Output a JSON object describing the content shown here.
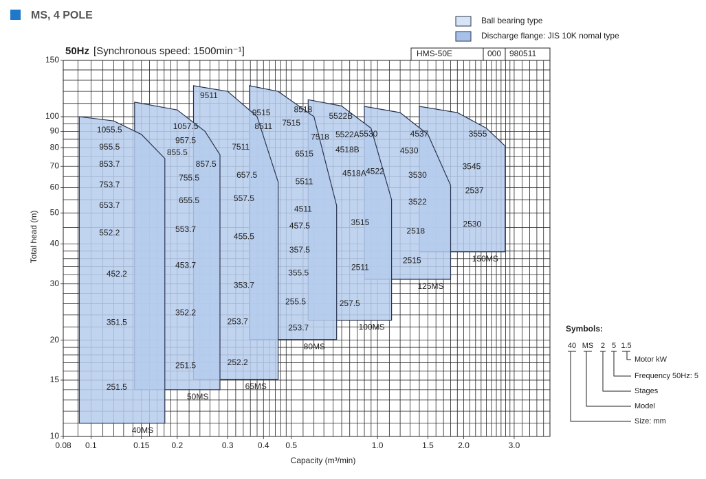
{
  "header": "MS, 4 POLE",
  "legend": [
    {
      "label": "Ball bearing type",
      "color": "#d6e4f5"
    },
    {
      "label": "Discharge flange: JIS 10K nomal type",
      "color": "#a6c0e8"
    }
  ],
  "doc_box": [
    "HMS-50E",
    "000",
    "980511"
  ],
  "symbols": {
    "title": "Symbols:",
    "codes": [
      "40",
      "MS",
      "2",
      "5",
      "1.5"
    ],
    "meanings": [
      "Size: mm",
      "Model",
      "Stages",
      "Frequency 50Hz: 5",
      "Motor kW"
    ]
  },
  "chart_data": {
    "type": "region",
    "title_bold": "50Hz",
    "title": "[Synchronous speed: 1500min⁻¹]",
    "x_label": "Capacity  (m³/min)",
    "y_label": "Total head  (m)",
    "log_x": true,
    "log_y": true,
    "xlim": [
      0.08,
      4.0
    ],
    "ylim": [
      10,
      150
    ],
    "color": "#b5cbec",
    "edge_color": "#2a3550",
    "xticks": [
      0.08,
      0.1,
      0.15,
      0.2,
      0.3,
      0.4,
      0.5,
      {
        "value": 1,
        "label": "1.0"
      },
      1.5,
      {
        "value": 2,
        "label": "2.0"
      },
      {
        "value": 3,
        "label": "3.0"
      }
    ],
    "yticks": [
      10,
      15,
      20,
      30,
      40,
      50,
      60,
      70,
      80,
      90,
      100,
      150
    ],
    "xgrid": [
      0.09,
      0.11,
      0.12,
      0.13,
      0.14,
      0.16,
      0.17,
      0.18,
      0.19,
      0.22,
      0.24,
      0.26,
      0.28,
      0.32,
      0.34,
      0.36,
      0.38,
      0.42,
      0.44,
      0.46,
      0.48,
      0.55,
      0.6,
      0.65,
      0.7,
      0.75,
      0.8,
      0.85,
      0.9,
      0.95,
      1.1,
      1.2,
      1.3,
      1.4,
      1.6,
      1.7,
      1.8,
      1.9,
      2.1,
      2.2,
      2.3,
      2.4,
      2.5,
      2.6,
      2.7,
      2.8,
      2.9,
      3.2,
      3.4,
      3.6,
      3.8,
      4.0
    ],
    "ygrid": [
      11,
      12,
      13,
      14,
      16,
      17,
      18,
      19,
      22,
      24,
      26,
      28,
      32,
      34,
      36,
      38,
      45,
      55,
      65,
      75,
      85,
      95,
      110,
      120,
      130,
      140
    ],
    "families": [
      {
        "name": "150MS",
        "x": [
          1.4,
          1.9,
          2.4,
          2.79,
          2.79,
          1.4
        ],
        "y": [
          107.7,
          103,
          92,
          81,
          37.8,
          37.8
        ],
        "models": [
          {
            "name": "3555",
            "x": 2.24,
            "y": 88.1
          },
          {
            "name": "3545",
            "x": 2.13,
            "y": 69.7
          },
          {
            "name": "2537",
            "x": 2.18,
            "y": 58.5
          },
          {
            "name": "2530",
            "x": 2.14,
            "y": 46.0
          }
        ]
      },
      {
        "name": "125MS",
        "x": [
          0.9,
          1.2,
          1.5,
          1.8,
          1.8,
          0.9
        ],
        "y": [
          107.7,
          103,
          88,
          61,
          31,
          31
        ],
        "models": [
          {
            "name": "4537",
            "x": 1.4,
            "y": 88.1
          },
          {
            "name": "4530",
            "x": 1.29,
            "y": 78.0
          },
          {
            "name": "3530",
            "x": 1.38,
            "y": 65.5
          },
          {
            "name": "3522",
            "x": 1.38,
            "y": 54
          },
          {
            "name": "2518",
            "x": 1.36,
            "y": 43.7
          },
          {
            "name": "2515",
            "x": 1.32,
            "y": 35.4
          }
        ]
      },
      {
        "name": "100MS",
        "x": [
          0.573,
          0.75,
          0.95,
          1.12,
          1.12,
          0.573
        ],
        "y": [
          113,
          108,
          92,
          55,
          23.1,
          23.1
        ],
        "models": [
          {
            "name": "8518",
            "x": 0.55,
            "y": 105
          },
          {
            "name": "5522B",
            "x": 0.745,
            "y": 100
          },
          {
            "name": "7518",
            "x": 0.63,
            "y": 86.2
          },
          {
            "name": "5522A",
            "x": 0.785,
            "y": 87.5
          },
          {
            "name": "4518B",
            "x": 0.785,
            "y": 78.6
          },
          {
            "name": "5530",
            "x": 0.93,
            "y": 88.1
          },
          {
            "name": "4522",
            "x": 0.98,
            "y": 67.3
          },
          {
            "name": "4518A",
            "x": 0.83,
            "y": 66.3
          },
          {
            "name": "3515",
            "x": 0.87,
            "y": 46.5
          },
          {
            "name": "2511",
            "x": 0.87,
            "y": 33.7
          },
          {
            "name": "257.5",
            "x": 0.8,
            "y": 26.0
          }
        ]
      },
      {
        "name": "80MS",
        "x": [
          0.357,
          0.45,
          0.6,
          0.72,
          0.72,
          0.357
        ],
        "y": [
          125,
          120,
          100,
          52.7,
          20.1,
          20.1
        ],
        "models": [
          {
            "name": "9515",
            "x": 0.393,
            "y": 102.5
          },
          {
            "name": "8511",
            "x": 0.4,
            "y": 92.9
          },
          {
            "name": "7515",
            "x": 0.5,
            "y": 95.2
          },
          {
            "name": "6515",
            "x": 0.555,
            "y": 76.2
          },
          {
            "name": "5511",
            "x": 0.555,
            "y": 62.5
          },
          {
            "name": "4511",
            "x": 0.55,
            "y": 51.3
          },
          {
            "name": "457.5",
            "x": 0.535,
            "y": 45.4
          },
          {
            "name": "357.5",
            "x": 0.535,
            "y": 38.2
          },
          {
            "name": "355.5",
            "x": 0.53,
            "y": 32.4
          },
          {
            "name": "255.5",
            "x": 0.518,
            "y": 26.3
          },
          {
            "name": "253.7",
            "x": 0.53,
            "y": 21.8
          }
        ]
      },
      {
        "name": "65MS",
        "x": [
          0.228,
          0.3,
          0.38,
          0.45,
          0.45,
          0.228
        ],
        "y": [
          125,
          120,
          100,
          62.5,
          15.1,
          15.1
        ],
        "models": [
          {
            "name": "9511",
            "x": 0.258,
            "y": 116
          },
          {
            "name": "7511",
            "x": 0.333,
            "y": 80.1
          },
          {
            "name": "657.5",
            "x": 0.35,
            "y": 65.5
          },
          {
            "name": "557.5",
            "x": 0.342,
            "y": 55.3
          },
          {
            "name": "455.5",
            "x": 0.342,
            "y": 42.1
          },
          {
            "name": "353.7",
            "x": 0.342,
            "y": 29.6
          },
          {
            "name": "253.7",
            "x": 0.325,
            "y": 22.8
          },
          {
            "name": "252.2",
            "x": 0.325,
            "y": 17.0
          }
        ]
      },
      {
        "name": "50MS",
        "x": [
          0.142,
          0.2,
          0.25,
          0.282,
          0.282,
          0.142
        ],
        "y": [
          111,
          105,
          90,
          76,
          14,
          14
        ],
        "models": [
          {
            "name": "1057.5",
            "x": 0.214,
            "y": 92.9
          },
          {
            "name": "957.5",
            "x": 0.214,
            "y": 84
          },
          {
            "name": "855.5",
            "x": 0.2,
            "y": 77
          },
          {
            "name": "857.5",
            "x": 0.252,
            "y": 70.8
          },
          {
            "name": "755.5",
            "x": 0.22,
            "y": 64.1
          },
          {
            "name": "655.5",
            "x": 0.22,
            "y": 54.5
          },
          {
            "name": "553.7",
            "x": 0.214,
            "y": 44.3
          },
          {
            "name": "453.7",
            "x": 0.214,
            "y": 34.2
          },
          {
            "name": "352.2",
            "x": 0.214,
            "y": 24.3
          },
          {
            "name": "251.5",
            "x": 0.214,
            "y": 16.6
          }
        ]
      },
      {
        "name": "40MS",
        "x": [
          0.091,
          0.12,
          0.15,
          0.181,
          0.181,
          0.091
        ],
        "y": [
          100,
          97,
          88,
          74,
          11,
          11
        ],
        "models": [
          {
            "name": "1055.5",
            "x": 0.116,
            "y": 90.6
          },
          {
            "name": "955.5",
            "x": 0.116,
            "y": 80.1
          },
          {
            "name": "853.7",
            "x": 0.116,
            "y": 70.8
          },
          {
            "name": "753.7",
            "x": 0.116,
            "y": 61.0
          },
          {
            "name": "653.7",
            "x": 0.116,
            "y": 52.6
          },
          {
            "name": "552.2",
            "x": 0.116,
            "y": 43.2
          },
          {
            "name": "452.2",
            "x": 0.123,
            "y": 32.1
          },
          {
            "name": "351.5",
            "x": 0.123,
            "y": 22.7
          },
          {
            "name": "251.5",
            "x": 0.123,
            "y": 14.2
          }
        ]
      }
    ]
  }
}
